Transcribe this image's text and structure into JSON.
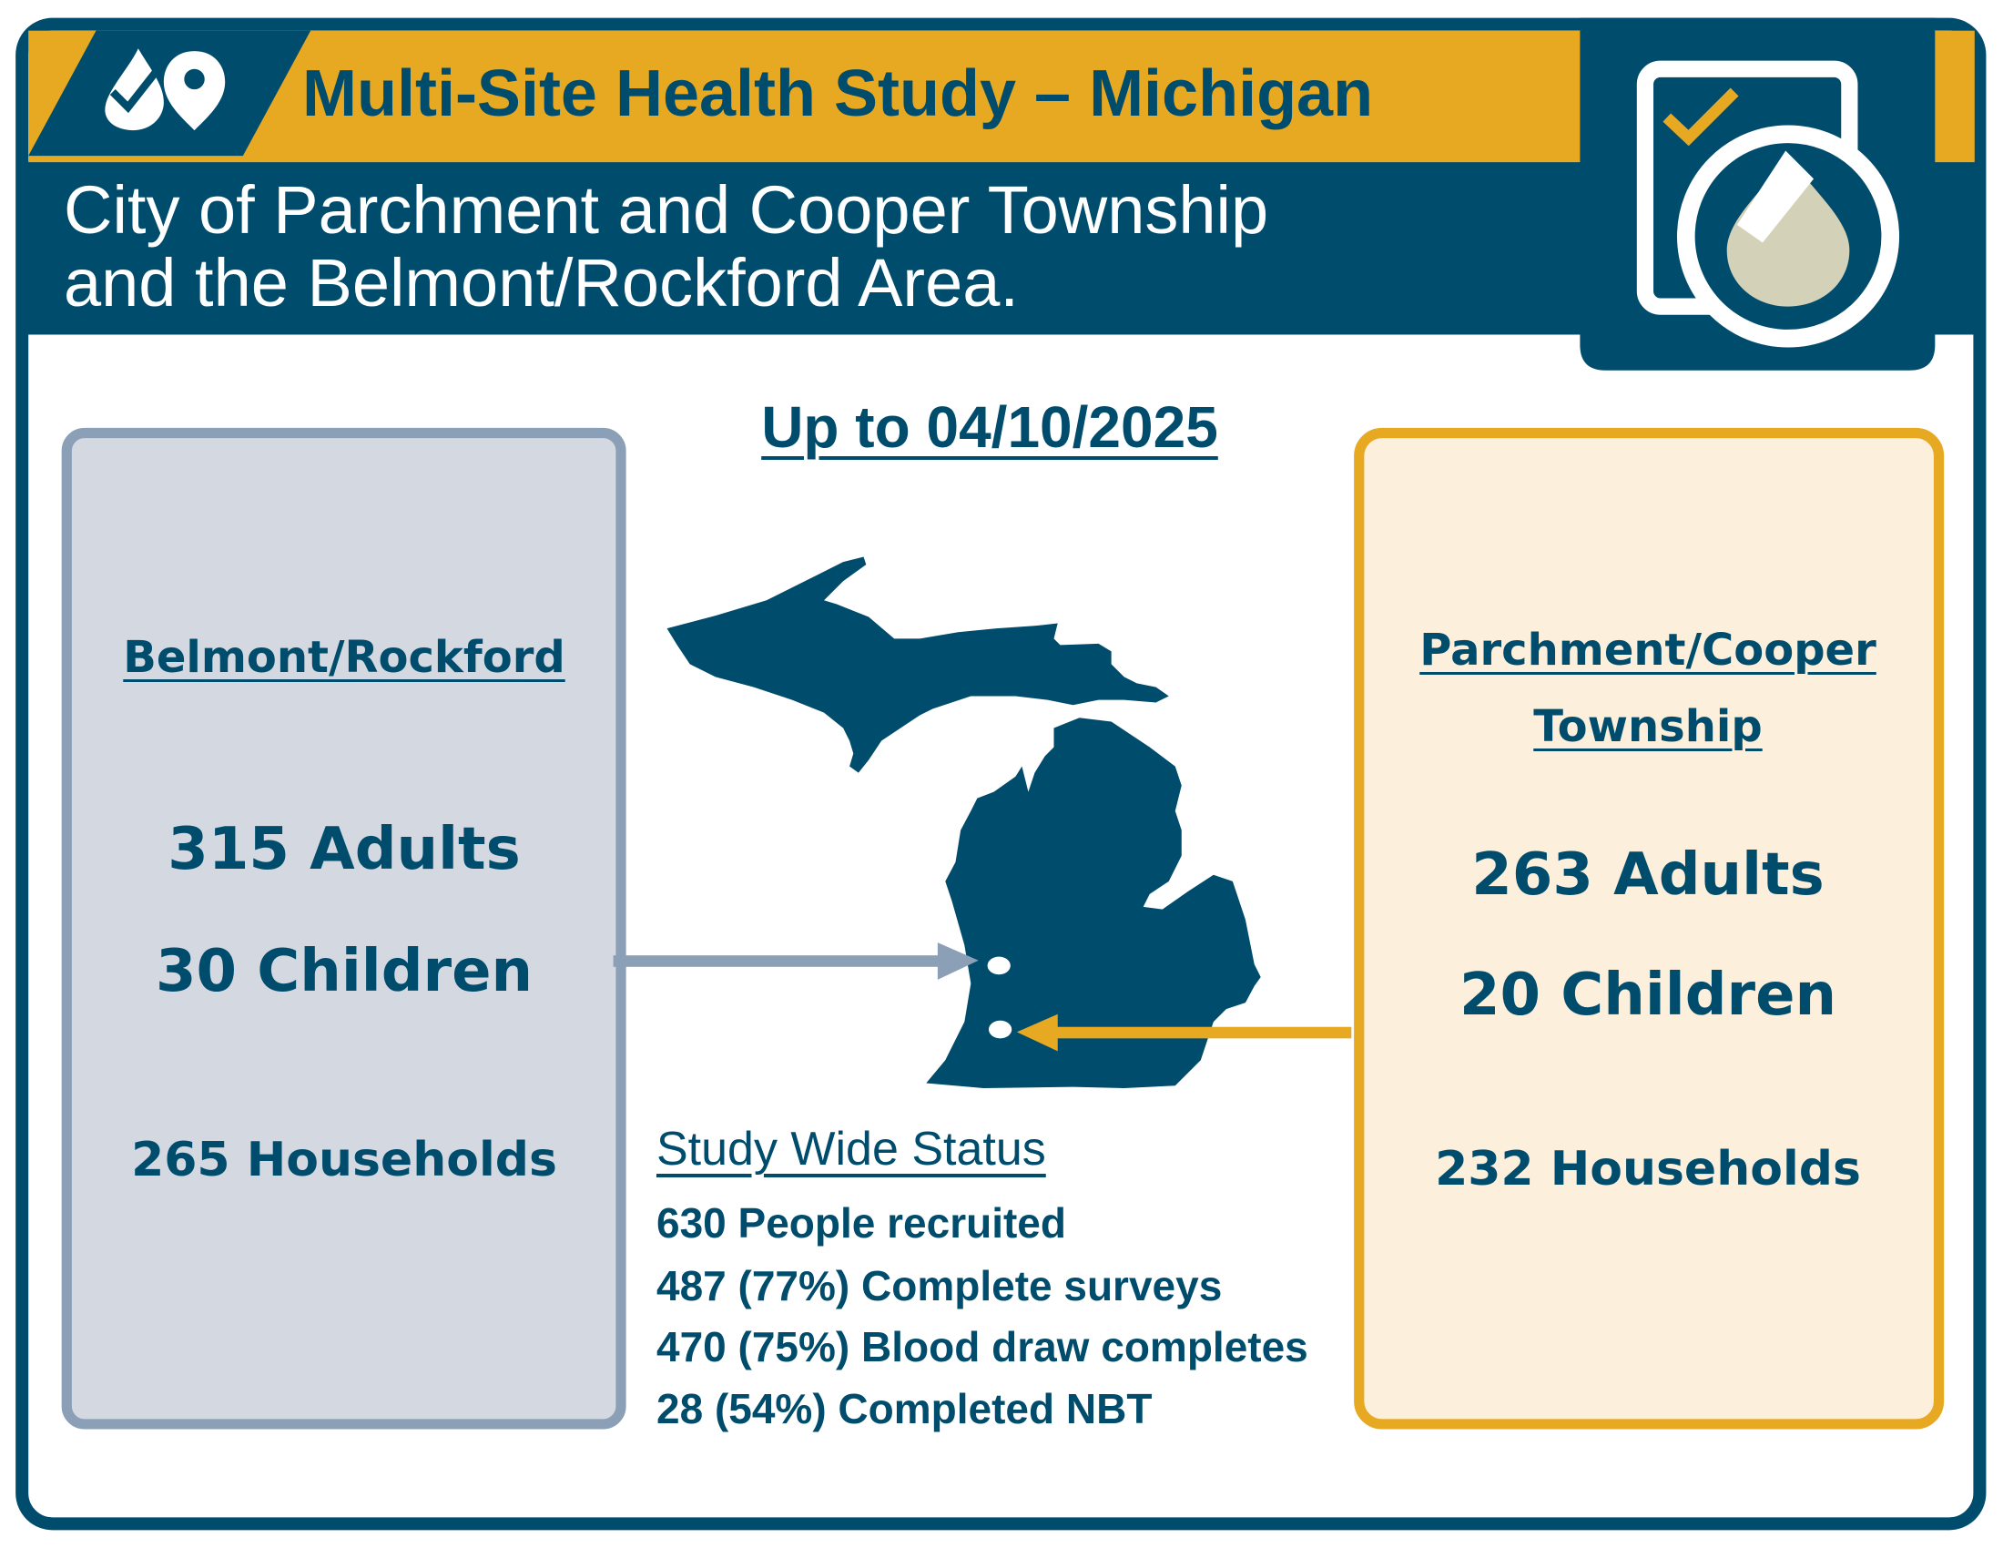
{
  "colors": {
    "navy": "#004c6c",
    "gold": "#e8a922",
    "slate": "#8ba0b6",
    "slate_fill": "#d3d8e1",
    "cream_fill": "#fcefdc",
    "beige": "#d3d1b7"
  },
  "header": {
    "title": "Multi-Site Health Study – Michigan",
    "subtitle_line1": "City of Parchment and Cooper Township",
    "subtitle_line2": "and the Belmont/Rockford Area.",
    "logo_icon": "droplet-map-pin-icon",
    "badge_icon": "clipboard-check-droplet-icon"
  },
  "date_label": "Up to 04/10/2025",
  "left_site": {
    "name": "Belmont/Rockford",
    "adults": "315 Adults",
    "children": "30 Children",
    "households": "265 Households"
  },
  "right_site": {
    "name_line1": "Parchment/Cooper",
    "name_line2": "Township",
    "adults": "263 Adults",
    "children": "20 Children",
    "households": "232 Households"
  },
  "status": {
    "heading": "Study Wide Status",
    "lines": [
      "630 People recruited",
      "487 (77%) Complete surveys",
      "470 (75%) Blood draw completes",
      "28 (54%) Completed NBT"
    ]
  }
}
